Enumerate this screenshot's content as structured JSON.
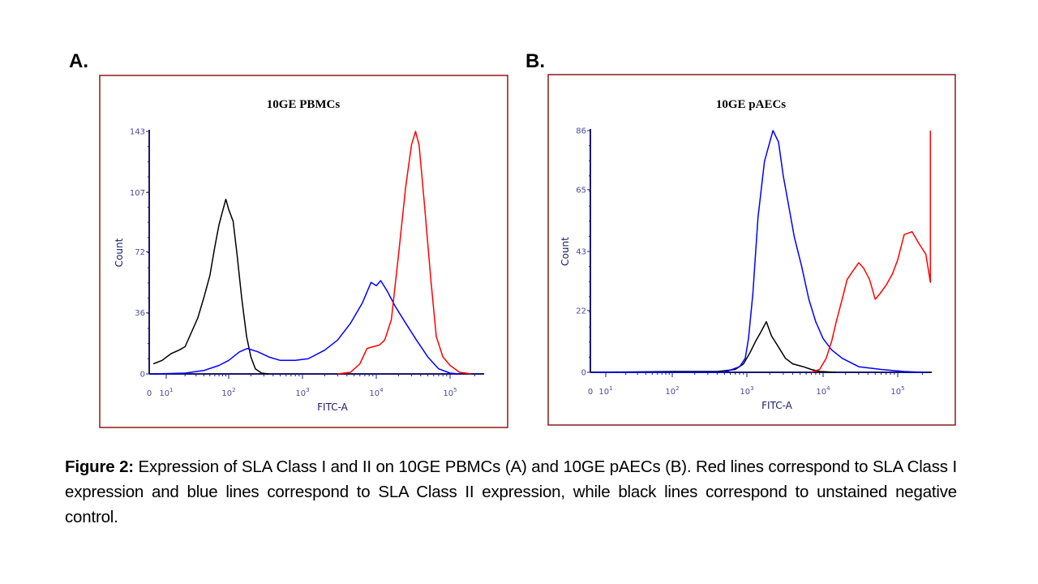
{
  "panels": [
    {
      "letter": "A."
    },
    {
      "letter": "B."
    }
  ],
  "caption": {
    "label": "Figure 2:",
    "text": " Expression of SLA Class I and II on 10GE PBMCs (A) and 10GE pAECs (B). Red lines correspond to SLA Class I expression and blue lines correspond to SLA Class II expression, while black lines correspond to unstained negative control."
  },
  "colors": {
    "frame": "#8b1a1a",
    "axis": "#1a1a6e",
    "tick_text": "#4a4a9a",
    "class1": "#ff0000",
    "class2": "#0000ff",
    "control": "#000000"
  },
  "chart_data": [
    {
      "type": "line",
      "title": "10GE PBMCs",
      "xlabel": "FITC-A",
      "ylabel": "Count",
      "x_scale": "log",
      "x_ticks": [
        {
          "base": "0",
          "exp": ""
        },
        {
          "base": "10",
          "exp": "1"
        },
        {
          "base": "10",
          "exp": "2"
        },
        {
          "base": "10",
          "exp": "3"
        },
        {
          "base": "10",
          "exp": "4"
        },
        {
          "base": "10",
          "exp": "5"
        }
      ],
      "y_ticks": [
        "0",
        "36",
        "72",
        "107",
        "143"
      ],
      "ylim": [
        0,
        143
      ],
      "grid": false,
      "series": [
        {
          "color": "#000000",
          "points": [
            [
              5,
              6
            ],
            [
              8,
              8
            ],
            [
              12,
              12
            ],
            [
              16,
              14
            ],
            [
              20,
              16
            ],
            [
              25,
              24
            ],
            [
              32,
              33
            ],
            [
              40,
              45
            ],
            [
              50,
              58
            ],
            [
              60,
              75
            ],
            [
              70,
              88
            ],
            [
              80,
              96
            ],
            [
              90,
              103
            ],
            [
              100,
              97
            ],
            [
              115,
              90
            ],
            [
              130,
              70
            ],
            [
              150,
              45
            ],
            [
              175,
              22
            ],
            [
              200,
              10
            ],
            [
              230,
              3
            ],
            [
              280,
              0.5
            ],
            [
              350,
              0
            ]
          ]
        },
        {
          "color": "#0000ff",
          "points": [
            [
              5,
              0
            ],
            [
              20,
              0.5
            ],
            [
              40,
              2
            ],
            [
              70,
              5
            ],
            [
              100,
              8
            ],
            [
              140,
              13
            ],
            [
              180,
              15
            ],
            [
              250,
              13
            ],
            [
              350,
              10
            ],
            [
              500,
              8
            ],
            [
              800,
              8
            ],
            [
              1200,
              9
            ],
            [
              2000,
              14
            ],
            [
              3000,
              20
            ],
            [
              4500,
              30
            ],
            [
              6500,
              42
            ],
            [
              8500,
              54
            ],
            [
              10000,
              52
            ],
            [
              11500,
              55
            ],
            [
              14000,
              49
            ],
            [
              18000,
              40
            ],
            [
              25000,
              30
            ],
            [
              35000,
              20
            ],
            [
              50000,
              10
            ],
            [
              70000,
              3
            ],
            [
              100000,
              0.5
            ],
            [
              130000,
              0
            ]
          ]
        },
        {
          "color": "#ff0000",
          "points": [
            [
              3000,
              0
            ],
            [
              4500,
              1
            ],
            [
              6000,
              6
            ],
            [
              7500,
              15
            ],
            [
              9000,
              16
            ],
            [
              11000,
              17
            ],
            [
              13000,
              20
            ],
            [
              16000,
              32
            ],
            [
              20000,
              70
            ],
            [
              25000,
              110
            ],
            [
              30000,
              135
            ],
            [
              34000,
              143
            ],
            [
              38000,
              135
            ],
            [
              45000,
              100
            ],
            [
              55000,
              55
            ],
            [
              65000,
              22
            ],
            [
              80000,
              10
            ],
            [
              100000,
              5
            ],
            [
              130000,
              1
            ],
            [
              180000,
              0
            ]
          ]
        }
      ]
    },
    {
      "type": "line",
      "title": "10GE pAECs",
      "xlabel": "FITC-A",
      "ylabel": "Count",
      "x_scale": "log",
      "x_ticks": [
        {
          "base": "0",
          "exp": ""
        },
        {
          "base": "10",
          "exp": "1"
        },
        {
          "base": "10",
          "exp": "2"
        },
        {
          "base": "10",
          "exp": "3"
        },
        {
          "base": "10",
          "exp": "4"
        },
        {
          "base": "10",
          "exp": "5"
        }
      ],
      "y_ticks": [
        "0",
        "22",
        "43",
        "65",
        "86"
      ],
      "ylim": [
        0,
        86
      ],
      "grid": false,
      "series": [
        {
          "color": "#000000",
          "points": [
            [
              5,
              0
            ],
            [
              100,
              0.3
            ],
            [
              400,
              0.3
            ],
            [
              700,
              1
            ],
            [
              900,
              3
            ],
            [
              1100,
              7
            ],
            [
              1300,
              11
            ],
            [
              1500,
              14
            ],
            [
              1800,
              18
            ],
            [
              2100,
              13
            ],
            [
              2600,
              9
            ],
            [
              3200,
              5
            ],
            [
              4000,
              3
            ],
            [
              5500,
              2
            ],
            [
              7000,
              1
            ],
            [
              9000,
              0.3
            ],
            [
              15000,
              0
            ]
          ]
        },
        {
          "color": "#0000ff",
          "points": [
            [
              5,
              0
            ],
            [
              500,
              0
            ],
            [
              800,
              2
            ],
            [
              950,
              5
            ],
            [
              1050,
              12
            ],
            [
              1200,
              28
            ],
            [
              1400,
              55
            ],
            [
              1700,
              75
            ],
            [
              2000,
              82
            ],
            [
              2200,
              86
            ],
            [
              2600,
              82
            ],
            [
              3000,
              70
            ],
            [
              3500,
              60
            ],
            [
              4200,
              48
            ],
            [
              5200,
              38
            ],
            [
              6500,
              26
            ],
            [
              8000,
              18
            ],
            [
              10000,
              12
            ],
            [
              13000,
              8
            ],
            [
              18000,
              5
            ],
            [
              30000,
              2
            ],
            [
              60000,
              1
            ],
            [
              120000,
              0.3
            ],
            [
              200000,
              0
            ]
          ]
        },
        {
          "color": "#ff0000",
          "points": [
            [
              7000,
              0
            ],
            [
              9000,
              1
            ],
            [
              11000,
              5
            ],
            [
              13000,
              11
            ],
            [
              15000,
              18
            ],
            [
              18000,
              26
            ],
            [
              21000,
              33
            ],
            [
              25000,
              36
            ],
            [
              30000,
              39
            ],
            [
              35000,
              37
            ],
            [
              42000,
              33
            ],
            [
              50000,
              26
            ],
            [
              58000,
              28
            ],
            [
              70000,
              31
            ],
            [
              85000,
              35
            ],
            [
              100000,
              40
            ],
            [
              120000,
              49
            ],
            [
              150000,
              50
            ],
            [
              180000,
              46
            ],
            [
              220000,
              42
            ],
            [
              250000,
              32
            ],
            [
              250001,
              86
            ]
          ]
        }
      ]
    }
  ]
}
